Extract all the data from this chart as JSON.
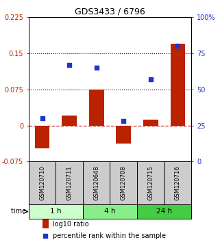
{
  "title": "GDS3433 / 6796",
  "samples": [
    "GSM120710",
    "GSM120711",
    "GSM120648",
    "GSM120708",
    "GSM120715",
    "GSM120716"
  ],
  "log10_ratio": [
    -0.048,
    0.02,
    0.075,
    -0.038,
    0.012,
    0.17
  ],
  "percentile_rank": [
    30,
    67,
    65,
    28,
    57,
    80
  ],
  "left_ylim": [
    -0.075,
    0.225
  ],
  "right_ylim": [
    0,
    100
  ],
  "left_yticks": [
    -0.075,
    0,
    0.075,
    0.15,
    0.225
  ],
  "right_yticks": [
    0,
    25,
    50,
    75,
    100
  ],
  "left_ytick_labels": [
    "-0.075",
    "0",
    "0.075",
    "0.15",
    "0.225"
  ],
  "right_ytick_labels": [
    "0",
    "25",
    "50",
    "75",
    "100%"
  ],
  "hlines": [
    0.075,
    0.15
  ],
  "bar_color": "#bb2200",
  "dot_color": "#2233cc",
  "zero_line_color": "#cc3333",
  "hline_color": "black",
  "groups": [
    {
      "label": "1 h",
      "spans": [
        0,
        2
      ],
      "color": "#ccffcc"
    },
    {
      "label": "4 h",
      "spans": [
        2,
        4
      ],
      "color": "#88ee88"
    },
    {
      "label": "24 h",
      "spans": [
        4,
        6
      ],
      "color": "#44cc44"
    }
  ],
  "time_label": "time",
  "legend_bar_label": "log10 ratio",
  "legend_dot_label": "percentile rank within the sample",
  "bar_width": 0.55,
  "sample_box_color": "#cccccc",
  "title_fontsize": 9,
  "tick_fontsize": 7,
  "label_fontsize": 6
}
